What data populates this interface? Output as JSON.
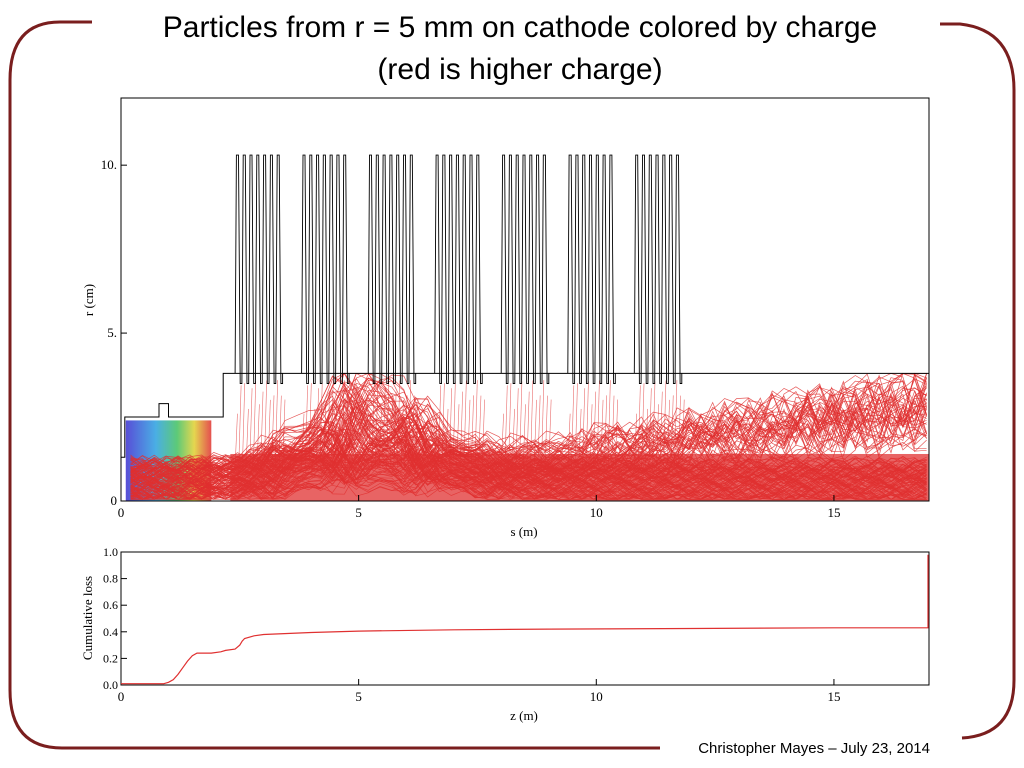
{
  "slide": {
    "title_line1": "Particles from r = 5 mm on cathode colored by charge",
    "title_line2": "(red is higher charge)",
    "footer": "Christopher Mayes – July 23, 2014",
    "frame_color": "#7a1e1e"
  },
  "chart_data": [
    {
      "type": "line",
      "description_role": "particle trajectories in beamline geometry",
      "xlabel": "s (m)",
      "ylabel": "r (cm)",
      "xlim": [
        0,
        17
      ],
      "ylim": [
        0,
        12
      ],
      "xticks": [
        0,
        5,
        10,
        15
      ],
      "xtick_labels": [
        "0",
        "5",
        "10",
        "15"
      ],
      "yticks": [
        0,
        5,
        10
      ],
      "ytick_labels": [
        "0",
        "5.",
        "10."
      ],
      "boundary": {
        "name": "beam pipe / cavity wall",
        "color": "#000000",
        "x": [
          0,
          0.08,
          0.08,
          0.15,
          0.15,
          0.8,
          0.8,
          1.0,
          1.0,
          2.15,
          2.15,
          2.3,
          2.3,
          17.0
        ],
        "y": [
          1.3,
          1.3,
          2.5,
          2.5,
          2.5,
          2.5,
          2.9,
          2.9,
          2.5,
          2.5,
          3.8,
          3.8,
          3.8,
          3.8
        ],
        "cavity_cells": [
          {
            "start": 2.4,
            "end": 3.4
          },
          {
            "start": 3.8,
            "end": 4.8
          },
          {
            "start": 5.2,
            "end": 6.2
          },
          {
            "start": 6.6,
            "end": 7.6
          },
          {
            "start": 8.0,
            "end": 9.0
          },
          {
            "start": 9.4,
            "end": 10.4
          },
          {
            "start": 10.8,
            "end": 11.8
          }
        ],
        "cavity_peak_r": 10.3,
        "cavity_base_r": 3.5
      },
      "trajectory_color": "#e03030",
      "color_meaning": "charge (red is higher charge)"
    },
    {
      "type": "line",
      "xlabel": "z (m)",
      "ylabel": "Cumulative loss",
      "xlim": [
        0,
        17
      ],
      "ylim": [
        0,
        1
      ],
      "xticks": [
        0,
        5,
        10,
        15
      ],
      "xtick_labels": [
        "0",
        "5",
        "10",
        "15"
      ],
      "yticks": [
        0,
        0.2,
        0.4,
        0.6,
        0.8,
        1.0
      ],
      "ytick_labels": [
        "0.0",
        "0.2",
        "0.4",
        "0.6",
        "0.8",
        "1.0"
      ],
      "series": [
        {
          "color": "#e03030",
          "x": [
            0,
            0.9,
            1.0,
            1.1,
            1.2,
            1.3,
            1.4,
            1.5,
            1.6,
            1.65,
            1.9,
            2.1,
            2.2,
            2.4,
            2.5,
            2.55,
            2.6,
            2.8,
            3.0,
            4.0,
            5.0,
            7.0,
            9.0,
            12.0,
            15.0,
            16.98,
            16.98
          ],
          "y": [
            0.01,
            0.01,
            0.02,
            0.04,
            0.08,
            0.13,
            0.18,
            0.22,
            0.24,
            0.24,
            0.24,
            0.25,
            0.26,
            0.27,
            0.3,
            0.33,
            0.35,
            0.37,
            0.38,
            0.395,
            0.405,
            0.415,
            0.42,
            0.425,
            0.43,
            0.43,
            0.98
          ]
        }
      ]
    }
  ]
}
